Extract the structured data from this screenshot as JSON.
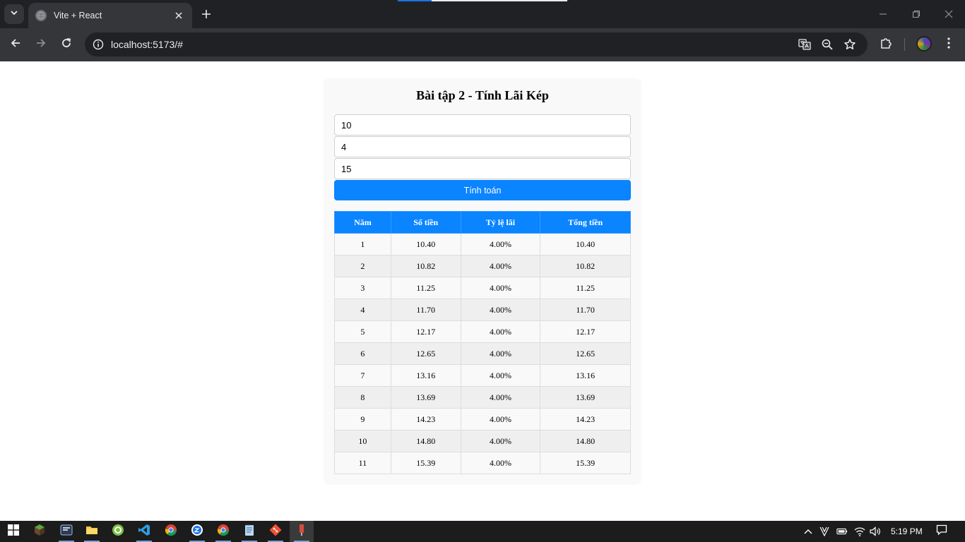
{
  "browser": {
    "tab_title": "Vite + React",
    "url": "localhost:5173/#"
  },
  "app": {
    "title": "Bài tập 2 - Tính Lãi Kép",
    "inputs": [
      {
        "value": "10"
      },
      {
        "value": "4"
      },
      {
        "value": "15"
      }
    ],
    "calculate_label": "Tính toán",
    "table": {
      "headers": [
        "Năm",
        "Số tiền",
        "Tỷ lệ lãi",
        "Tổng tiền"
      ],
      "rows": [
        [
          "1",
          "10.40",
          "4.00%",
          "10.40"
        ],
        [
          "2",
          "10.82",
          "4.00%",
          "10.82"
        ],
        [
          "3",
          "11.25",
          "4.00%",
          "11.25"
        ],
        [
          "4",
          "11.70",
          "4.00%",
          "11.70"
        ],
        [
          "5",
          "12.17",
          "4.00%",
          "12.17"
        ],
        [
          "6",
          "12.65",
          "4.00%",
          "12.65"
        ],
        [
          "7",
          "13.16",
          "4.00%",
          "13.16"
        ],
        [
          "8",
          "13.69",
          "4.00%",
          "13.69"
        ],
        [
          "9",
          "14.23",
          "4.00%",
          "14.23"
        ],
        [
          "10",
          "14.80",
          "4.00%",
          "14.80"
        ],
        [
          "11",
          "15.39",
          "4.00%",
          "15.39"
        ]
      ]
    }
  },
  "taskbar": {
    "clock": "5:19 PM"
  },
  "colors": {
    "accent": "#0a84ff",
    "chrome_dark": "#202124",
    "chrome_toolbar": "#35363a"
  }
}
